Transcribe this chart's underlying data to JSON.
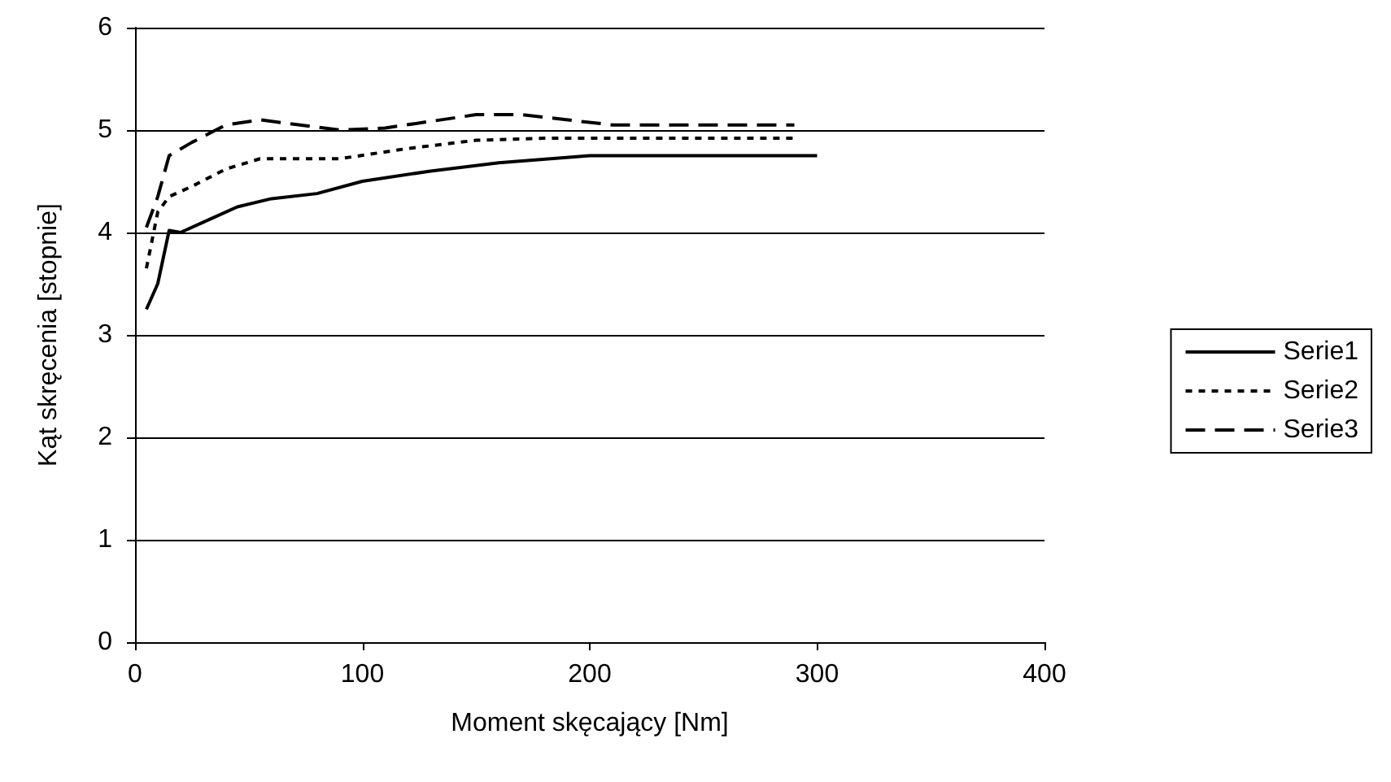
{
  "chart_data": {
    "type": "line",
    "xlabel": "Moment skęcający [Nm]",
    "ylabel": "Kąt skręcenia [stopnie]",
    "xlim": [
      0,
      400
    ],
    "xticks": [
      0,
      100,
      200,
      300,
      400
    ],
    "ylim": [
      0,
      6
    ],
    "yticks": [
      0,
      1,
      2,
      3,
      4,
      5,
      6
    ],
    "grid": "y",
    "legend": "right",
    "marker": "none",
    "series": [
      {
        "name": "Serie1",
        "color": "#000000",
        "line_style": "solid",
        "x": [
          5,
          10,
          15,
          20,
          30,
          45,
          60,
          80,
          100,
          130,
          160,
          200,
          230,
          300
        ],
        "values": [
          3.25,
          3.5,
          4.02,
          4.0,
          4.1,
          4.25,
          4.33,
          4.38,
          4.5,
          4.6,
          4.68,
          4.75,
          4.75,
          4.75
        ]
      },
      {
        "name": "Serie2",
        "color": "#000000",
        "line_style": "dotted",
        "x": [
          5,
          10,
          15,
          25,
          40,
          55,
          90,
          120,
          150,
          180,
          200,
          290
        ],
        "values": [
          3.65,
          4.2,
          4.35,
          4.45,
          4.62,
          4.72,
          4.72,
          4.82,
          4.9,
          4.92,
          4.92,
          4.92
        ]
      },
      {
        "name": "Serie3",
        "color": "#000000",
        "line_style": "dashed",
        "x": [
          5,
          10,
          15,
          25,
          40,
          55,
          90,
          110,
          150,
          170,
          210,
          240,
          290
        ],
        "values": [
          4.05,
          4.35,
          4.75,
          4.88,
          5.05,
          5.1,
          5.0,
          5.02,
          5.15,
          5.15,
          5.05,
          5.05,
          5.05
        ]
      }
    ]
  }
}
